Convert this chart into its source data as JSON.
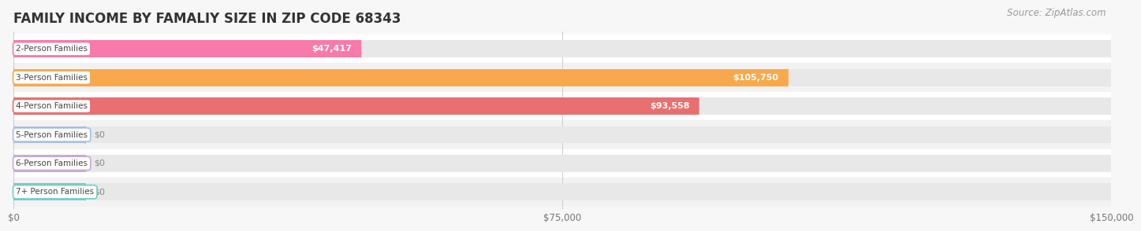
{
  "title": "FAMILY INCOME BY FAMALIY SIZE IN ZIP CODE 68343",
  "source": "Source: ZipAtlas.com",
  "categories": [
    "2-Person Families",
    "3-Person Families",
    "4-Person Families",
    "5-Person Families",
    "6-Person Families",
    "7+ Person Families"
  ],
  "values": [
    47417,
    105750,
    93558,
    0,
    0,
    0
  ],
  "bar_colors": [
    "#f87aaa",
    "#f9a94b",
    "#e87070",
    "#a8bfe0",
    "#c9a8d8",
    "#74cec8"
  ],
  "value_labels": [
    "$47,417",
    "$105,750",
    "$93,558",
    "$0",
    "$0",
    "$0"
  ],
  "xlim": [
    0,
    150000
  ],
  "xtick_labels": [
    "$0",
    "$75,000",
    "$150,000"
  ],
  "xtick_values": [
    0,
    75000,
    150000
  ],
  "background_color": "#f7f7f7",
  "bar_bg_color": "#e8e8e8",
  "row_colors": [
    "#ffffff",
    "#f2f2f2"
  ],
  "title_fontsize": 12,
  "source_fontsize": 8.5,
  "label_fontsize": 7.5,
  "value_fontsize": 8
}
